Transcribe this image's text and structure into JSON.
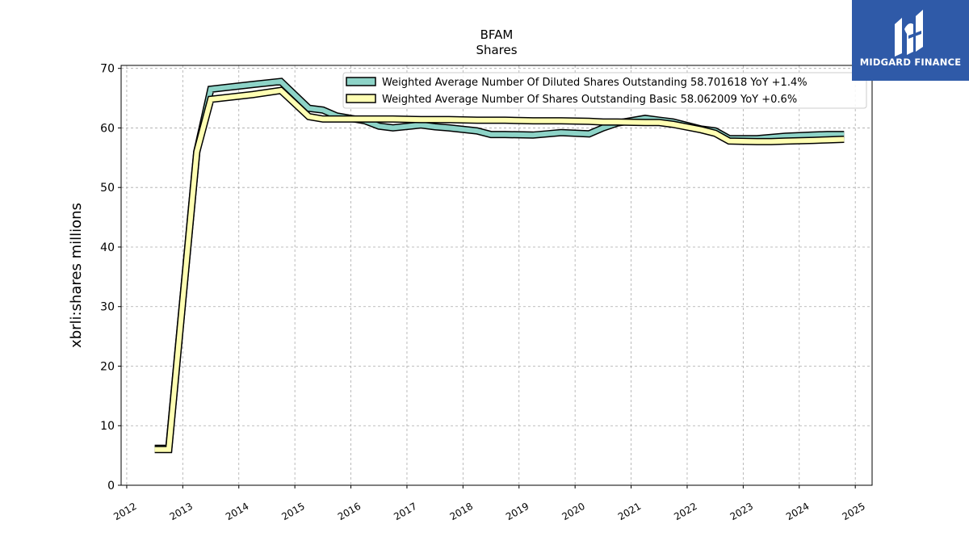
{
  "chart_data": {
    "type": "line",
    "title": "BFAM",
    "subtitle": "Shares",
    "xlabel": "",
    "ylabel": "xbrli:shares millions",
    "xlim": [
      2011.9,
      2025.3
    ],
    "ylim": [
      0,
      70.5
    ],
    "x_ticks": [
      2012,
      2013,
      2014,
      2015,
      2016,
      2017,
      2018,
      2019,
      2020,
      2021,
      2022,
      2023,
      2024,
      2025
    ],
    "y_ticks": [
      0,
      10,
      20,
      30,
      40,
      50,
      60,
      70
    ],
    "grid": true,
    "legend_position": "top-right",
    "series": [
      {
        "name": "Weighted Average Number Of Diluted Shares Outstanding",
        "legend_label": "Weighted Average Number Of Diluted Shares Outstanding  58.701618 YoY +1.4%",
        "color": "#8dd3c7",
        "x": [
          2012.5,
          2012.75,
          2013.25,
          2013.5,
          2014.25,
          2014.75,
          2015.25,
          2015.5,
          2015.75,
          2016.25,
          2016.5,
          2016.75,
          2017.25,
          2017.5,
          2017.75,
          2018.25,
          2018.5,
          2018.75,
          2019.25,
          2019.5,
          2019.75,
          2020.25,
          2020.5,
          2020.75,
          2021.25,
          2021.5,
          2021.75,
          2022.25,
          2022.5,
          2022.75,
          2023.25,
          2023.5,
          2023.75,
          2024.25,
          2024.5,
          2024.8
        ],
        "values": [
          6.2,
          6.2,
          56.0,
          66.5,
          67.3,
          67.8,
          63.3,
          63.0,
          62.0,
          61.2,
          60.3,
          60.0,
          60.5,
          60.2,
          60.0,
          59.5,
          58.9,
          58.9,
          58.8,
          59.0,
          59.2,
          59.0,
          60.0,
          60.8,
          61.6,
          61.3,
          61.0,
          59.8,
          59.5,
          58.2,
          58.2,
          58.4,
          58.6,
          58.8,
          58.9,
          58.9
        ]
      },
      {
        "name": "Weighted Average Number Of Shares Outstanding Basic",
        "legend_label": "Weighted Average Number Of Shares Outstanding Basic  58.062009 YoY +0.6%",
        "color": "#ffffb3",
        "x": [
          2012.5,
          2012.75,
          2013.25,
          2013.5,
          2014.25,
          2014.75,
          2015.25,
          2015.5,
          2015.75,
          2016.25,
          2016.5,
          2016.75,
          2017.25,
          2017.5,
          2017.75,
          2018.25,
          2018.5,
          2018.75,
          2019.25,
          2019.5,
          2019.75,
          2020.25,
          2020.5,
          2020.75,
          2021.25,
          2021.5,
          2021.75,
          2022.25,
          2022.5,
          2022.75,
          2023.25,
          2023.5,
          2023.75,
          2024.25,
          2024.5,
          2024.8
        ],
        "values": [
          6.0,
          6.0,
          56.0,
          64.8,
          65.6,
          66.3,
          61.9,
          61.5,
          61.5,
          61.5,
          61.5,
          61.5,
          61.4,
          61.4,
          61.4,
          61.3,
          61.3,
          61.3,
          61.2,
          61.2,
          61.2,
          61.1,
          61.0,
          61.0,
          60.9,
          60.9,
          60.6,
          59.7,
          59.1,
          57.8,
          57.7,
          57.7,
          57.8,
          57.9,
          58.0,
          58.1
        ]
      }
    ]
  },
  "logo": {
    "text": "MIDGARD FINANCE",
    "color": "#2f5aa8"
  }
}
